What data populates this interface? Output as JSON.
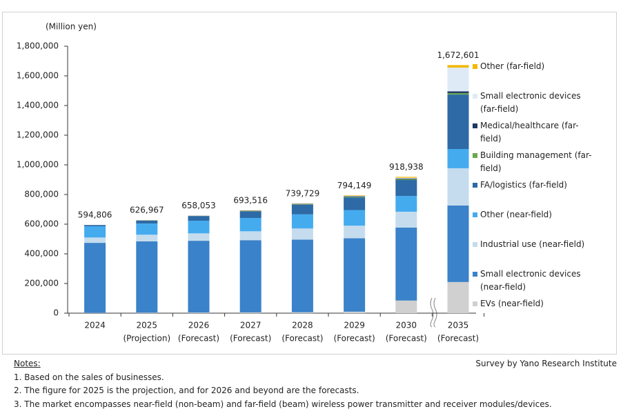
{
  "chart_data": {
    "type": "stacked_bar",
    "y_label": "(Million yen)",
    "categories": [
      [
        "2024"
      ],
      [
        "2025",
        "(Projection)"
      ],
      [
        "2026",
        "(Forecast)"
      ],
      [
        "2027",
        "(Forecast)"
      ],
      [
        "2028",
        "(Forecast)"
      ],
      [
        "2029",
        "(Forecast)"
      ],
      [
        "2030",
        "(Forecast)"
      ],
      [
        "2035",
        "(Forecast)"
      ]
    ],
    "series": [
      {
        "name": "EVs (near-field)",
        "color": "#d0d0d0",
        "values": [
          2000,
          3000,
          4000,
          5000,
          6000,
          10000,
          85000,
          210000
        ]
      },
      {
        "name": "Small electronic devices (near-field)",
        "color": "#3a82c9",
        "values": [
          472000,
          481000,
          484000,
          487000,
          490000,
          495000,
          492000,
          516000
        ]
      },
      {
        "name": "Industrial use (near-field)",
        "color": "#c4dced",
        "values": [
          36000,
          45000,
          50000,
          60000,
          75000,
          85000,
          107000,
          251000
        ]
      },
      {
        "name": "Other (near-field)",
        "color": "#45abef",
        "values": [
          76000,
          75000,
          85000,
          90000,
          95000,
          105000,
          106000,
          130000
        ]
      },
      {
        "name": "FA/logistics (far-field)",
        "color": "#2d6aa6",
        "values": [
          8000,
          20000,
          32000,
          45000,
          65000,
          85000,
          108000,
          367000
        ]
      },
      {
        "name": "Building management (far-field)",
        "color": "#6aa84f",
        "values": [
          400,
          1000,
          1000,
          2000,
          3000,
          4000,
          5000,
          10000
        ]
      },
      {
        "name": "Medical/healthcare (far-field)",
        "color": "#1f3864",
        "values": [
          300,
          1000,
          1000,
          2000,
          3000,
          4000,
          5000,
          12000
        ]
      },
      {
        "name": "Small electronic devices (far-field)",
        "color": "#deebf7",
        "values": [
          106,
          500,
          600,
          1000,
          1500,
          3000,
          5000,
          160000
        ]
      },
      {
        "name": "Other (far-field)",
        "color": "#f2b800",
        "values": [
          0,
          467,
          453,
          1516,
          1229,
          3149,
          5938,
          16601
        ]
      }
    ],
    "totals": [
      594806,
      626967,
      658053,
      693516,
      739729,
      794149,
      918938,
      1672601
    ],
    "total_labels": [
      "594,806",
      "626,967",
      "658,053",
      "693,516",
      "739,729",
      "794,149",
      "918,938",
      "1,672,601"
    ],
    "ylim": [
      0,
      1800000
    ],
    "yticks": [
      0,
      {
        "value": 200000,
        "label": "200,000"
      },
      {
        "value": 400000,
        "label": "400,000"
      },
      {
        "value": 600000,
        "label": "600,000"
      },
      {
        "value": 800000,
        "label": "800,000"
      },
      {
        "value": 1000000,
        "label": "1,000,000"
      },
      {
        "value": 1200000,
        "label": "1,200,000"
      },
      {
        "value": 1400000,
        "label": "1,400,000"
      },
      {
        "value": 1600000,
        "label": "1,600,000"
      },
      {
        "value": 1800000,
        "label": "1,800,000"
      }
    ],
    "legend": "right"
  },
  "notes": {
    "heading": "Notes:",
    "items": [
      "1.  Based on the sales of businesses.",
      "2.  The figure for 2025 is the projection, and for 2026 and beyond are the forecasts.",
      "3.  The market encompasses near-field (non-beam) and far-field (beam) wireless power transmitter and receiver modules/devices."
    ]
  },
  "source": "Survey by Yano Research Institute"
}
